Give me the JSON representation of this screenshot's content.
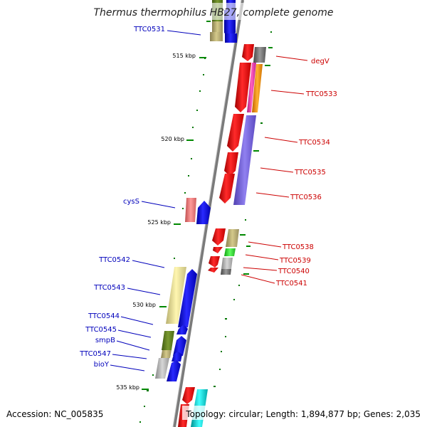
{
  "title": "Thermus thermophilus HB27, complete genome",
  "accession": "Accession: NC_005835",
  "topology": "Topology: circular; Length: 1,894,877 bp; Genes: 2,035",
  "colors": {
    "forward": "#0000ee",
    "reverse": "#dd0000",
    "backbone": "#777777",
    "tick": "#007700"
  },
  "kbp_ticks": [
    "515 kbp",
    "520 kbp",
    "525 kbp",
    "530 kbp",
    "535 kbp"
  ],
  "right_labels": [
    "degV",
    "TTC0533",
    "TTC0534",
    "TTC0535",
    "TTC0536",
    "TTC0538",
    "TTC0539",
    "TTC0540",
    "TTC0541"
  ],
  "left_labels": [
    "TTC0531",
    "cysS",
    "TTC0542",
    "TTC0543",
    "TTC0544",
    "TTC0545",
    "smpB",
    "TTC0547",
    "bioY"
  ]
}
